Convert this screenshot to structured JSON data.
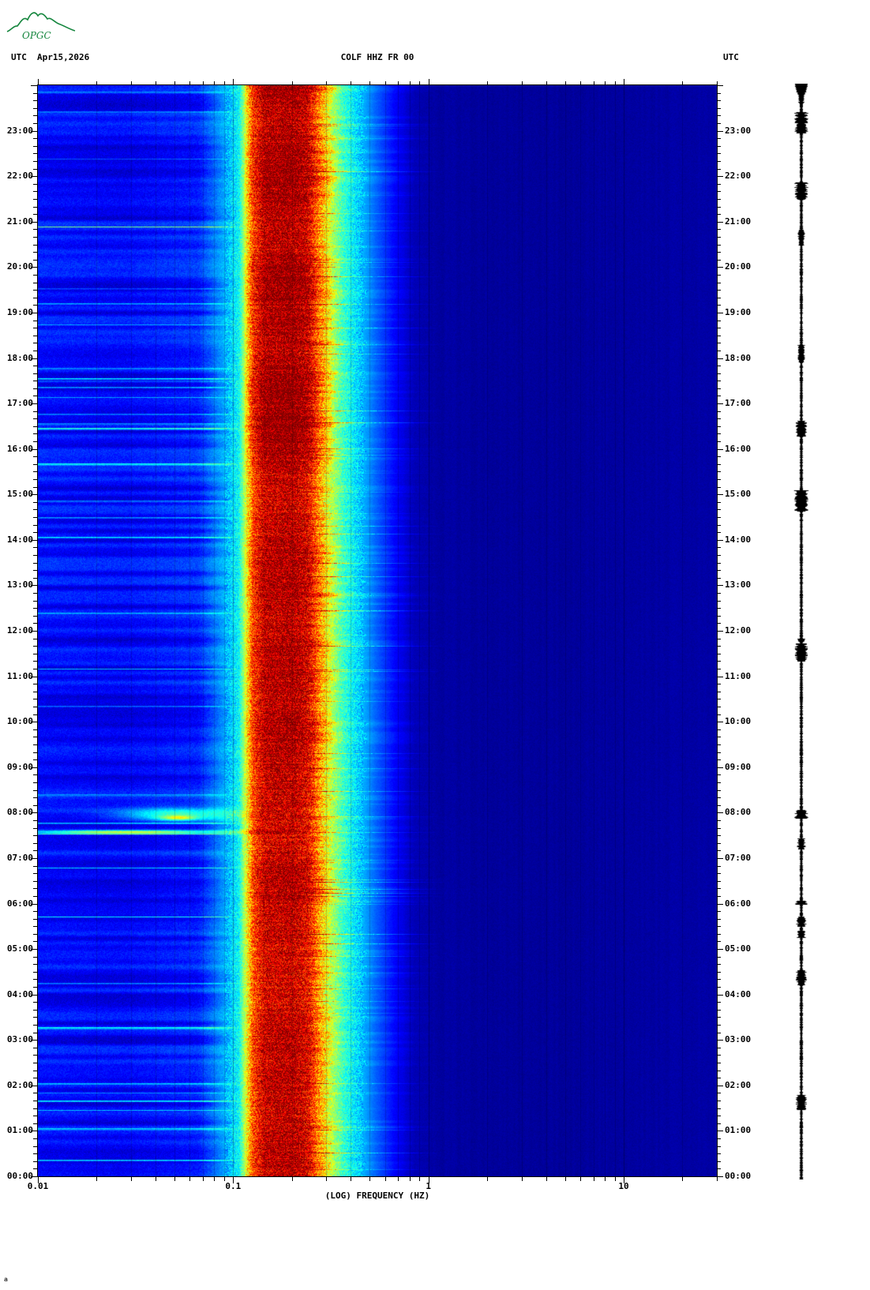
{
  "header": {
    "utc_left": "UTC",
    "date": "Apr15,2026",
    "title": "COLF HHZ FR 00",
    "utc_right": "UTC"
  },
  "logo": {
    "text": "OPGC",
    "color": "#15863e"
  },
  "x_axis": {
    "label": "(LOG) FREQUENCY (HZ)",
    "tick_labels": [
      "0.01",
      "0.1",
      "1",
      "10"
    ],
    "tick_values_log10": [
      -2,
      -1,
      0,
      1
    ],
    "min_hz": 0.01,
    "max_hz": 30,
    "scale": "log"
  },
  "y_axis": {
    "unit": "UTC",
    "hour_labels": [
      "23:00",
      "22:00",
      "21:00",
      "20:00",
      "19:00",
      "18:00",
      "17:00",
      "16:00",
      "15:00",
      "14:00",
      "13:00",
      "12:00",
      "11:00",
      "10:00",
      "09:00",
      "08:00",
      "07:00",
      "06:00",
      "05:00",
      "04:00",
      "03:00",
      "02:00",
      "01:00",
      "00:00"
    ]
  },
  "footer": {
    "mark": "a"
  },
  "chart_data": {
    "type": "heatmap",
    "title": "COLF HHZ FR 00",
    "date": "Apr15,2026",
    "timezone": "UTC",
    "xlabel": "(LOG) FREQUENCY (HZ)",
    "x_scale": "log",
    "x_range_hz": [
      0.01,
      30
    ],
    "y_range": [
      "00:00",
      "24:00"
    ],
    "colormap": "jet",
    "bands": [
      {
        "name": "low-frequency background",
        "range_hz": [
          0.01,
          0.08
        ],
        "level": "low-mid",
        "appearance": "royal blue with time-varying lighter horizontal streaks"
      },
      {
        "name": "cyan shoulder",
        "range_hz": [
          0.08,
          0.12
        ],
        "level": "mid",
        "appearance": "cyan vertical band"
      },
      {
        "name": "secondary microseism peak",
        "range_hz": [
          0.12,
          0.27
        ],
        "level": "high",
        "appearance": "red to dark-red band, strongest 16:00-24:00"
      },
      {
        "name": "upper shoulder",
        "range_hz": [
          0.27,
          0.35
        ],
        "level": "mid-high",
        "appearance": "yellow-orange ragged edge"
      },
      {
        "name": "roll-off",
        "range_hz": [
          0.35,
          0.6
        ],
        "level": "mid",
        "appearance": "cyan-to-blue speckle"
      },
      {
        "name": "high-frequency background",
        "range_hz": [
          0.6,
          30
        ],
        "level": "very low",
        "appearance": "dark navy, slightly darker 1-4 Hz"
      }
    ],
    "events": [
      {
        "time_utc": "07:35",
        "freq_range_hz": [
          0.01,
          0.1
        ],
        "description": "thin broadband low-frequency transient, cyan-yellow horizontal streak"
      },
      {
        "time_utc": "07:45-08:10",
        "freq_range_hz": [
          0.025,
          0.09
        ],
        "description": "elevated-energy patch, green-yellow with small red core near 0.05 Hz"
      }
    ],
    "render": {
      "seed": 20260415,
      "profile_stops": [
        [
          -2.0,
          0.14
        ],
        [
          -1.55,
          0.13
        ],
        [
          -1.18,
          0.16
        ],
        [
          -1.04,
          0.3
        ],
        [
          -0.97,
          0.38
        ],
        [
          -0.9,
          0.8
        ],
        [
          -0.84,
          0.93
        ],
        [
          -0.7,
          0.95
        ],
        [
          -0.62,
          0.9
        ],
        [
          -0.56,
          0.72
        ],
        [
          -0.5,
          0.56
        ],
        [
          -0.44,
          0.43
        ],
        [
          -0.36,
          0.33
        ],
        [
          -0.27,
          0.22
        ],
        [
          -0.18,
          0.13
        ],
        [
          -0.09,
          0.06
        ],
        [
          0.0,
          0.035
        ],
        [
          0.4,
          0.025
        ],
        [
          0.9,
          0.03
        ],
        [
          1.48,
          0.04
        ]
      ],
      "grid_minor_alpha": 0.17,
      "grid_major_alpha": 0.3,
      "events_render": [
        {
          "t": 7.57,
          "st": 0.045,
          "lfc": -1.55,
          "slf": 0.5,
          "amp": 0.5
        },
        {
          "t": 7.95,
          "st": 0.14,
          "lfc": -1.3,
          "slf": 0.28,
          "amp": 0.3
        },
        {
          "t": 7.88,
          "st": 0.05,
          "lfc": -1.28,
          "slf": 0.09,
          "amp": 0.28
        }
      ]
    }
  }
}
